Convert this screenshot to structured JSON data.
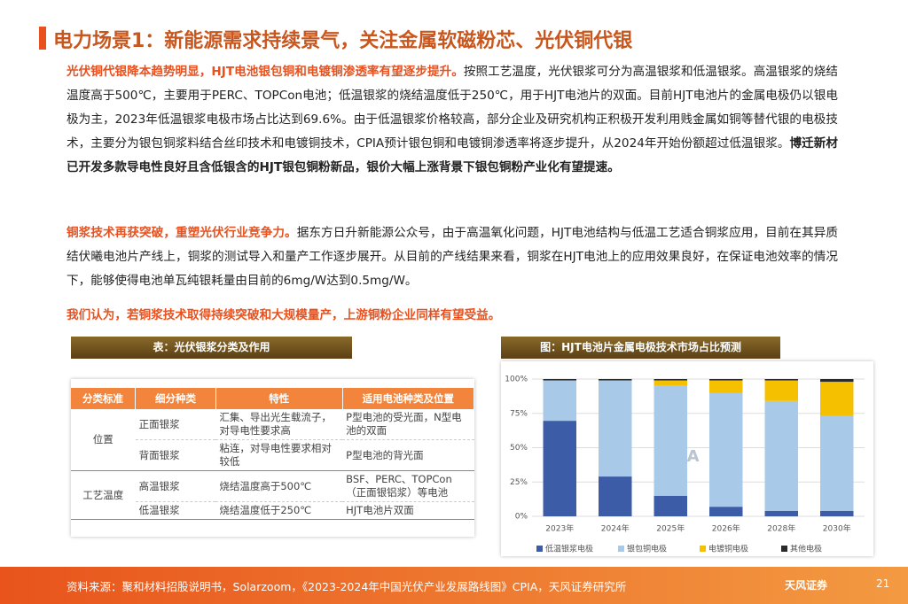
{
  "header": {
    "title": "电力场景1：新能源需求持续景气，关注金属软磁粉芯、光伏铜代银"
  },
  "paragraphs": [
    [
      "光伏铜代银降本趋势明显，HJT电池银包铜和电镀铜渗透率有望逐步提升。",
      "按照工艺温度，光伏银浆可分为高温银浆和低温银浆。高温银浆的烧结温度高于500℃，主要用于PERC、TOPCon电池；低温银浆的烧结温度低于250℃，用于HJT电池片的双面。目前HJT电池片的金属电极仍以银电极为主，2023年低温银浆电极市场占比达到69.6%。由于低温银浆价格较高，部分企业及研究机构正积极开发利用贱金属如铜等替代银的电极技术，主要分为银包铜浆料结合丝印技术和电镀铜技术，CPIA预计银包铜和电镀铜渗透率将逐步提升，从2024年开始份额超过低温银浆。",
      "博迁新材已开发多款导电性良好且含低银含的HJT银包铜粉新品，银价大幅上涨背景下银包铜粉产业化有望提速。"
    ],
    [
      "铜浆技术再获突破，重塑光伏行业竞争力。",
      "据东方日升新能源公众号，由于高温氧化问题，HJT电池结构与低温工艺适合铜浆应用，目前在其异质结伏曦电池片产线上，铜浆的测试导入和量产工作逐步展开。从目前的产线结果来看，铜浆在HJT电池上的应用效果良好，在保证电池效率的情况下，能够使得电池单瓦纯银耗量由目前的6mg/W达到0.5mg/W。"
    ],
    [
      "我们认为，若铜浆技术取得持续突破和大规模量产，上游铜粉企业同样有望受益。"
    ]
  ],
  "table_caption": "表：光伏银浆分类及作用",
  "table": {
    "header": [
      "分类标准",
      "细分种类",
      "特性",
      "适用电池种类及位置"
    ],
    "groups": [
      {
        "label": "位置",
        "rows": [
          [
            "正面银浆",
            "汇集、导出光生载流子，对导电性要求高",
            "P型电池的受光面，N型电池的双面"
          ],
          [
            "背面银浆",
            "粘连，对导电性要求相对较低",
            "P型电池的背光面"
          ]
        ]
      },
      {
        "label": "工艺温度",
        "rows": [
          [
            "高温银浆",
            "烧结温度高于500℃",
            "BSF、PERC、TOPCon（正面银铝浆）等电池"
          ],
          [
            "低温银浆",
            "烧结温度低于250℃",
            "HJT电池片双面"
          ]
        ]
      }
    ]
  },
  "chart_data": {
    "type": "bar",
    "stacked": true,
    "title": "图：HJT电池片金属电极技术市场占比预测",
    "watermark": "CPIA",
    "categories": [
      "2023年",
      "2024年",
      "2025年",
      "2026年",
      "2028年",
      "2030年"
    ],
    "series": [
      {
        "name": "低温银浆电极",
        "color": "#3d5ca8",
        "values": [
          69.6,
          29,
          15,
          7,
          4,
          4
        ]
      },
      {
        "name": "银包铜电极",
        "color": "#a9c9e9",
        "values": [
          29.4,
          70,
          80,
          83,
          80,
          69
        ]
      },
      {
        "name": "电镀铜电极",
        "color": "#f5c000",
        "values": [
          0,
          0,
          4,
          9,
          15,
          25
        ]
      },
      {
        "name": "其他电极",
        "color": "#2b2b2b",
        "values": [
          1,
          1,
          1,
          1,
          1,
          2
        ]
      }
    ],
    "ylim": [
      0,
      100
    ],
    "yticks": [
      {
        "value": 0,
        "label": "0%"
      },
      {
        "value": 25,
        "label": "25%"
      },
      {
        "value": 50,
        "label": "50%"
      },
      {
        "value": 75,
        "label": "75%"
      },
      {
        "value": 100,
        "label": "100%"
      }
    ],
    "grid": true
  },
  "footer": {
    "source": "资料来源：聚和材料招股说明书，Solarzoom，《2023-2024年中国光伏产业发展路线图》CPIA，天风证券研究所",
    "logo": "天风证券",
    "page": "21"
  }
}
